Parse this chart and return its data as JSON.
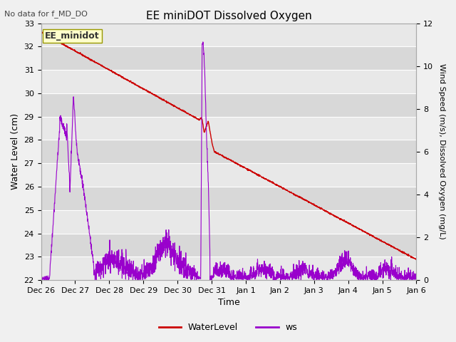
{
  "title": "EE miniDOT Dissolved Oxygen",
  "top_left_text": "No data for f_MD_DO",
  "annotation_text": "EE_minidot",
  "xlabel": "Time",
  "ylabel_left": "Water Level (cm)",
  "ylabel_right": "Wind Speed (m/s), Dissolved Oxygen (mg/L)",
  "ylim_left": [
    22.0,
    33.0
  ],
  "ylim_right": [
    0,
    12
  ],
  "yticks_left": [
    22.0,
    23.0,
    24.0,
    25.0,
    26.0,
    27.0,
    28.0,
    29.0,
    30.0,
    31.0,
    32.0,
    33.0
  ],
  "yticks_right": [
    0,
    2,
    4,
    6,
    8,
    10,
    12
  ],
  "xtick_labels": [
    "Dec 26",
    "Dec 27",
    "Dec 28",
    "Dec 29",
    "Dec 30",
    "Dec 31",
    "Jan 1",
    "Jan 2",
    "Jan 3",
    "Jan 4",
    "Jan 5",
    "Jan 6"
  ],
  "water_color": "#cc0000",
  "ws_color": "#9900cc",
  "legend_entries": [
    "WaterLevel",
    "ws"
  ],
  "fig_bg_color": "#f0f0f0",
  "plot_bg_color": "#e8e8e8",
  "grid_color": "#ffffff",
  "alt_band_color": "#d8d8d8"
}
